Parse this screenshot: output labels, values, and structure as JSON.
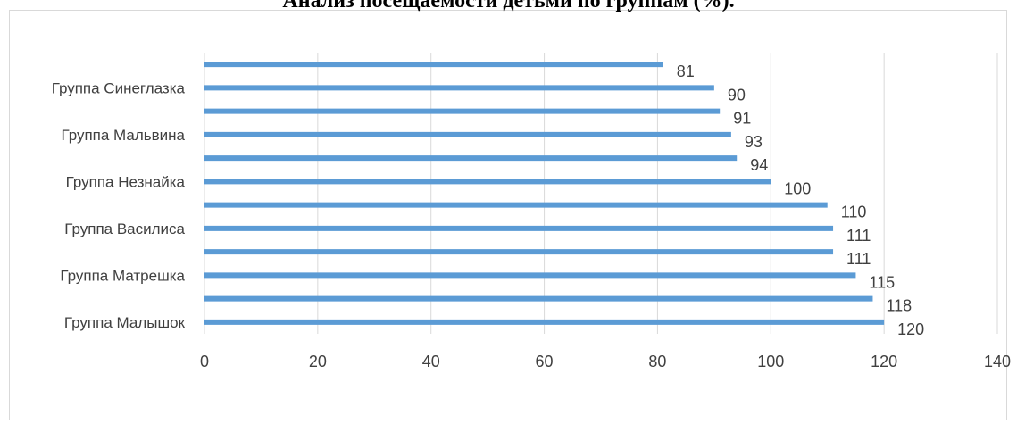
{
  "chart_data": {
    "type": "bar",
    "orientation": "horizontal",
    "title": "Анализ посещаемости детьми по группам (%).",
    "values": [
      120,
      118,
      115,
      111,
      111,
      110,
      100,
      94,
      93,
      91,
      90,
      81
    ],
    "category_labels": [
      {
        "index": 0,
        "label": "Группа Малышок"
      },
      {
        "index": 2,
        "label": "Группа Матрешка"
      },
      {
        "index": 4,
        "label": "Группа Василиса"
      },
      {
        "index": 6,
        "label": "Группа Незнайка"
      },
      {
        "index": 8,
        "label": "Группа Мальвина"
      },
      {
        "index": 10,
        "label": "Группа Синеглазка"
      }
    ],
    "xlim": [
      0,
      140
    ],
    "x_ticks": [
      0,
      20,
      40,
      60,
      80,
      100,
      120,
      140
    ],
    "grid": "vertical",
    "legend": "none",
    "bar_color": "#5b9bd5",
    "grid_color": "#d9d9d9"
  }
}
